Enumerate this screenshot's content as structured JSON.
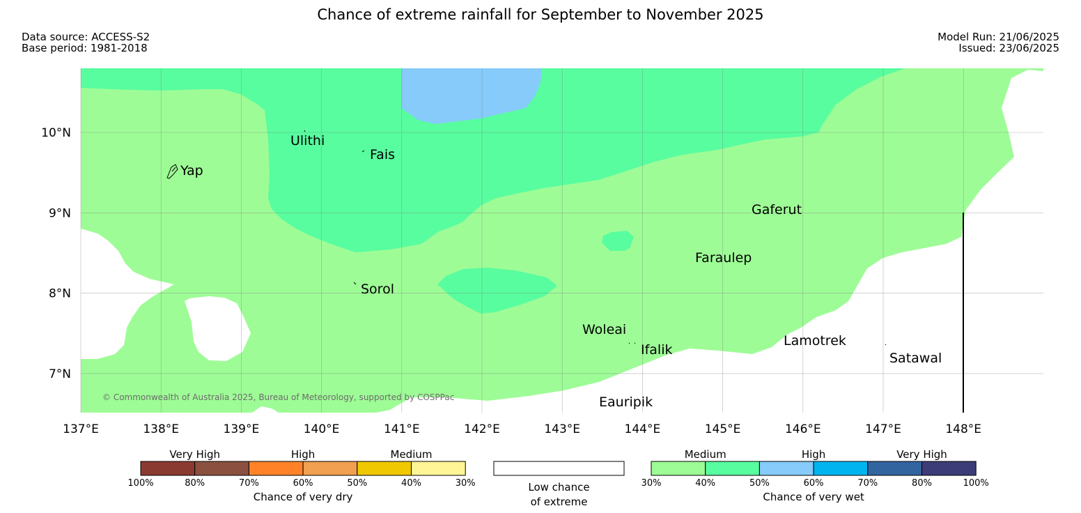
{
  "title": "Chance of extreme rainfall for September to November 2025",
  "meta": {
    "data_source": "Data source: ACCESS-S2",
    "base_period": "Base period: 1981-2018",
    "model_run": "Model Run: 21/06/2025",
    "issued": "Issued: 23/06/2025"
  },
  "map": {
    "lon_labels": [
      "137°E",
      "138°E",
      "139°E",
      "140°E",
      "141°E",
      "142°E",
      "143°E",
      "144°E",
      "145°E",
      "146°E",
      "147°E",
      "148°E"
    ],
    "lat_labels": [
      "10°N",
      "9°N",
      "8°N",
      "7°N"
    ],
    "places": {
      "yap": "Yap",
      "ulithi": "Ulithi",
      "fais": "Fais",
      "sorol": "Sorol",
      "gaferut": "Gaferut",
      "faraulep": "Faraulep",
      "woleai": "Woleai",
      "ifalik": "Ifalik",
      "lamotrek": "Lamotrek",
      "satawal": "Satawal",
      "eauripik": "Eauripik"
    },
    "copyright": "© Commonwealth of Australia 2025, Bureau of Meteorology, supported by COSPPac",
    "colors": {
      "wet_medium_30_40": "#9efc96",
      "wet_medium_40_50": "#58fd9f",
      "wet_high_50_60": "#86cbfa",
      "low_chance": "#ffffff"
    }
  },
  "legend": {
    "dry": {
      "title": "Chance of very dry",
      "categories": [
        "Very High",
        "High",
        "Medium"
      ],
      "ticks": [
        "100%",
        "80%",
        "70%",
        "60%",
        "50%",
        "40%",
        "30%"
      ],
      "colors": [
        "#8b3a32",
        "#8b5040",
        "#ff8228",
        "#f0a050",
        "#f0c800",
        "#fff596"
      ]
    },
    "low": {
      "line1": "Low chance",
      "line2": "of extreme"
    },
    "wet": {
      "title": "Chance of very wet",
      "categories": [
        "Medium",
        "High",
        "Very High"
      ],
      "ticks": [
        "30%",
        "40%",
        "50%",
        "60%",
        "70%",
        "80%",
        "100%"
      ],
      "colors": [
        "#9efc96",
        "#58fd9f",
        "#86cbfa",
        "#00b4f0",
        "#3264a0",
        "#3c3c78"
      ]
    }
  }
}
